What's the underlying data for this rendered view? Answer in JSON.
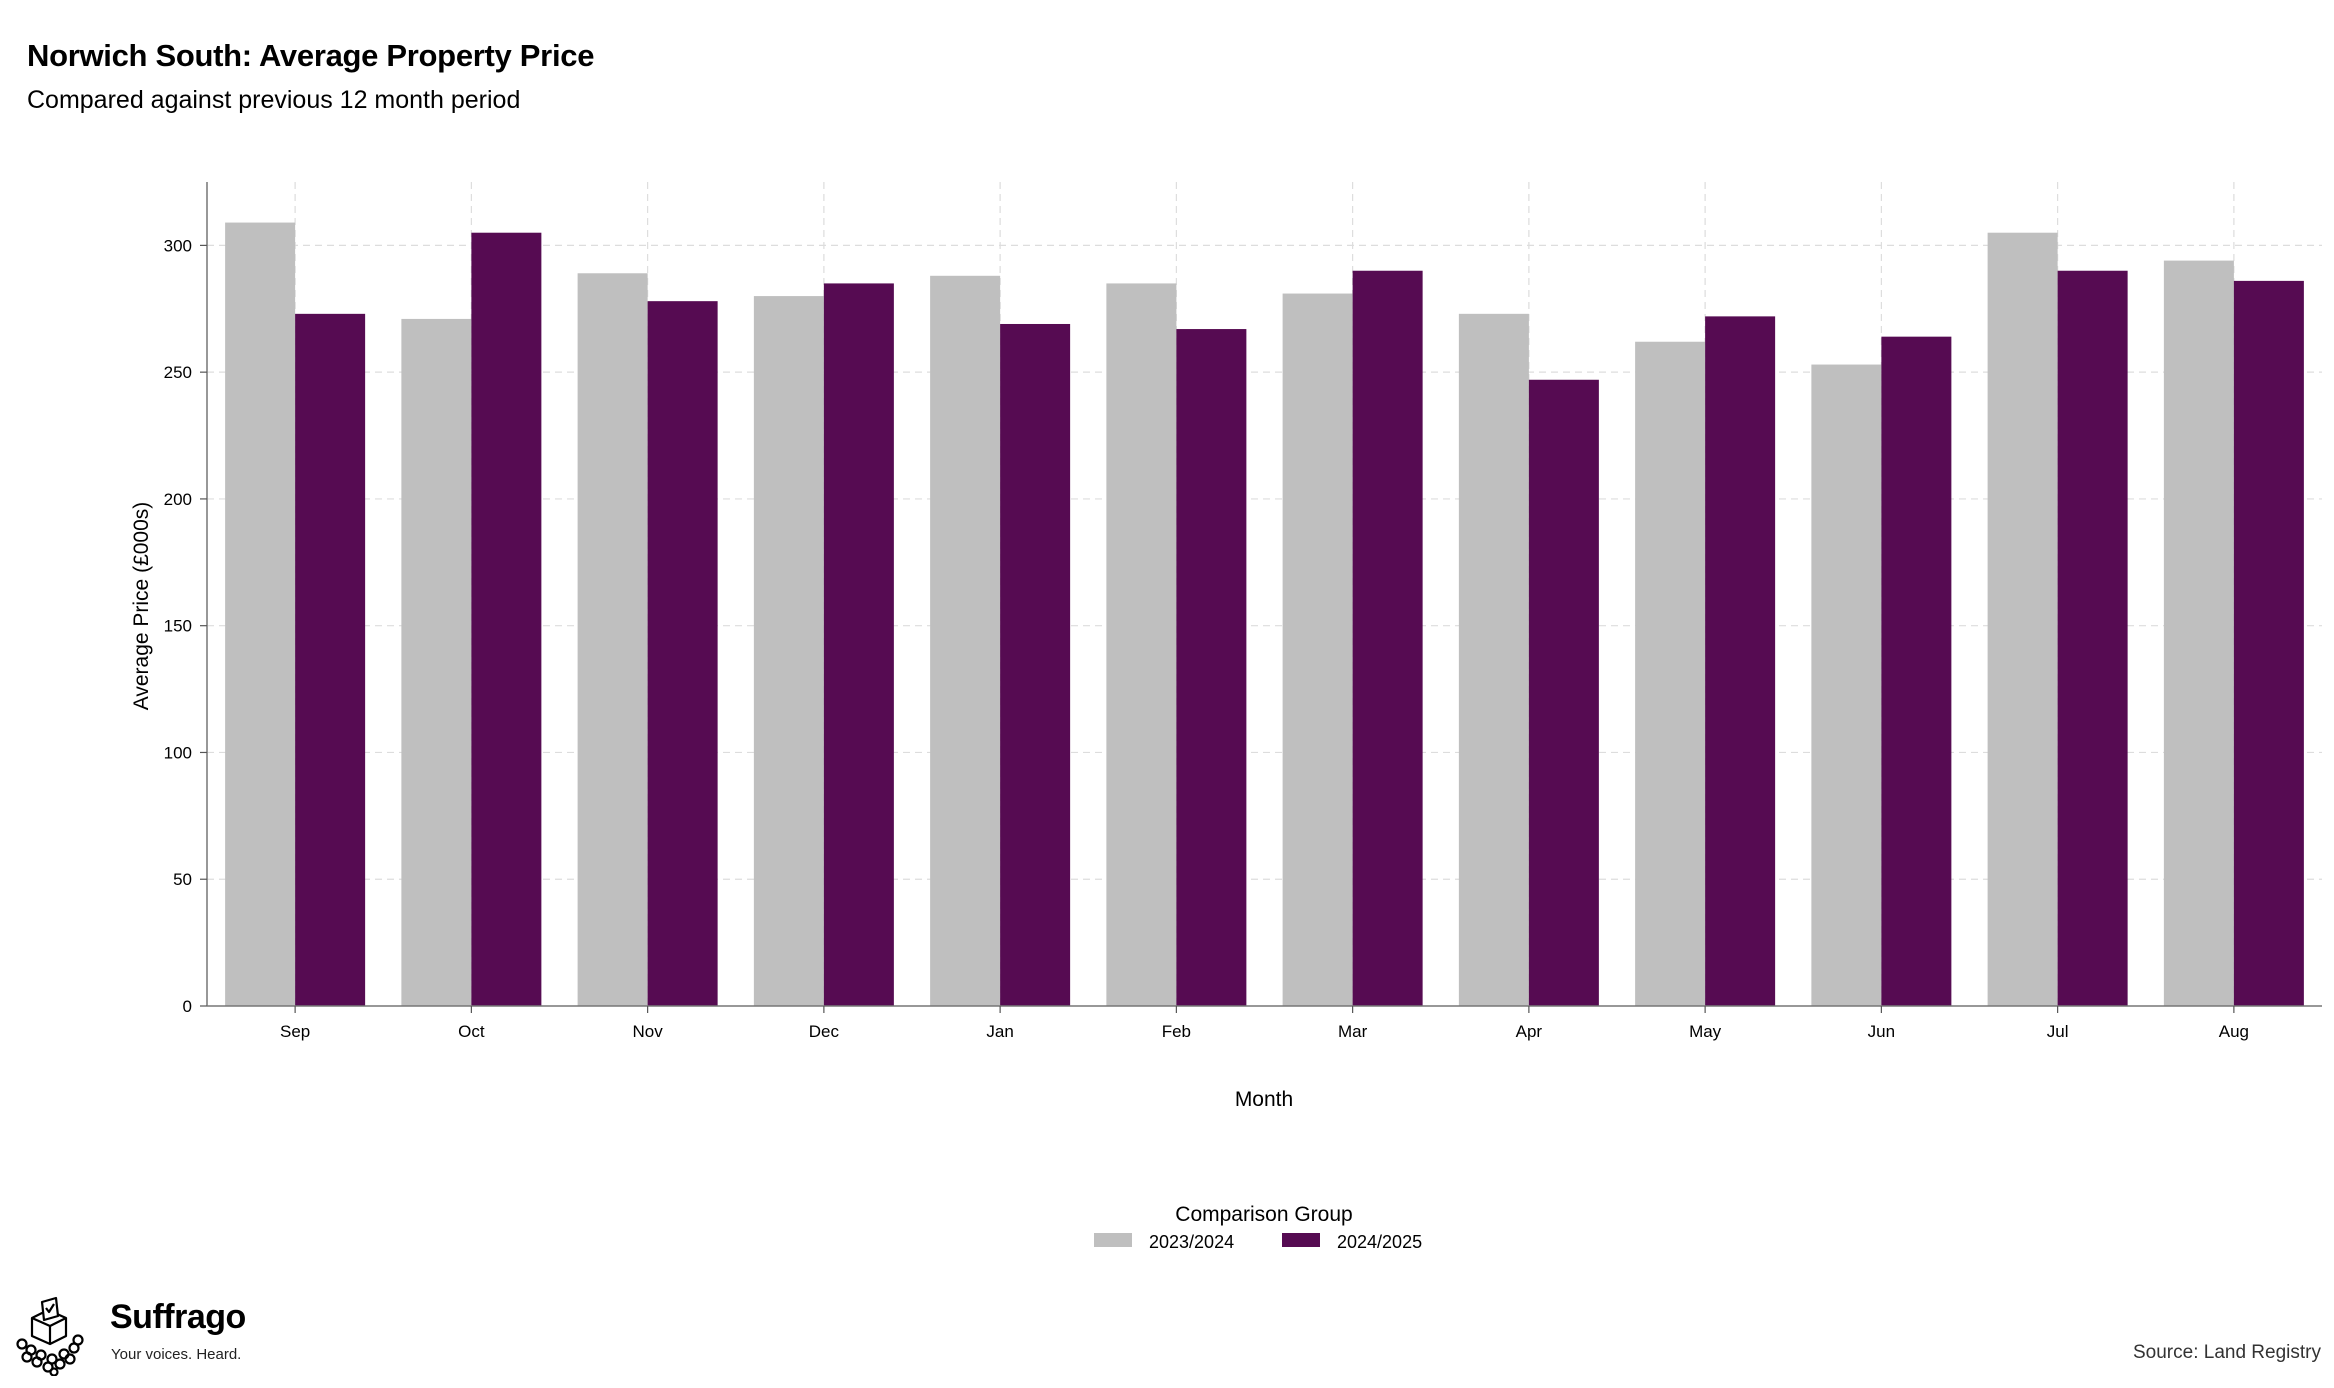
{
  "header": {
    "title": "Norwich South: Average Property Price",
    "subtitle": "Compared against previous 12 month period"
  },
  "chart_data": {
    "type": "bar",
    "categories": [
      "Sep",
      "Oct",
      "Nov",
      "Dec",
      "Jan",
      "Feb",
      "Mar",
      "Apr",
      "May",
      "Jun",
      "Jul",
      "Aug"
    ],
    "series": [
      {
        "name": "2023/2024",
        "color": "#bfbfbf",
        "values": [
          309,
          271,
          289,
          280,
          288,
          285,
          281,
          273,
          262,
          253,
          305,
          294
        ]
      },
      {
        "name": "2024/2025",
        "color": "#560b52",
        "values": [
          273,
          305,
          278,
          285,
          269,
          267,
          290,
          247,
          272,
          264,
          290,
          286
        ]
      }
    ],
    "xlabel": "Month",
    "ylabel": "Average Price (£000s)",
    "ylim": [
      0,
      325
    ],
    "yticks": [
      0,
      50,
      100,
      150,
      200,
      250,
      300
    ],
    "grid": true,
    "legend": {
      "title": "Comparison Group",
      "position": "bottom-center"
    }
  },
  "branding": {
    "name": "Suffrago",
    "tagline": "Your voices. Heard.",
    "logo_icon": "ballot-box-crowd-icon"
  },
  "source": "Source: Land Registry"
}
